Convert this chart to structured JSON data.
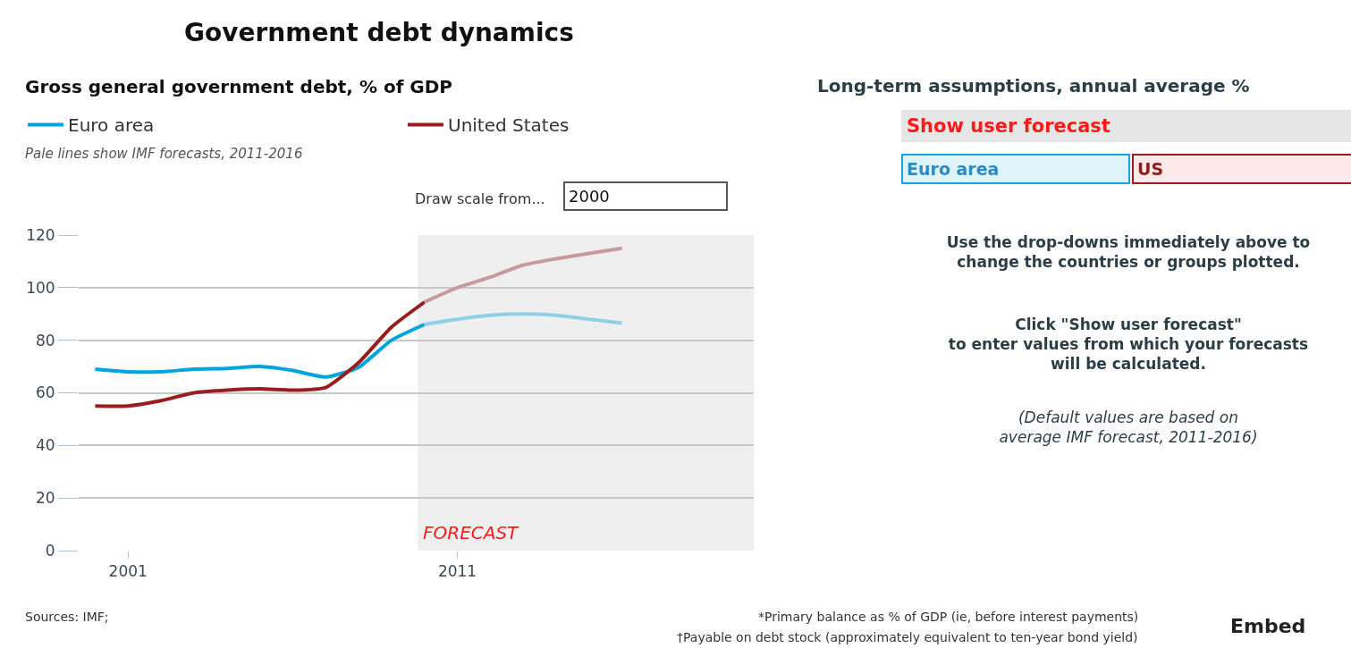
{
  "chart_data": {
    "type": "line",
    "title": "Government debt dynamics",
    "subtitle": "Gross general government debt, % of GDP",
    "x": [
      2000,
      2001,
      2002,
      2003,
      2004,
      2005,
      2006,
      2007,
      2008,
      2009,
      2010
    ],
    "series": [
      {
        "name": "Euro area",
        "color": "#00a5dd",
        "values": [
          69,
          68,
          68,
          69,
          69.3,
          70,
          68.5,
          66,
          69.7,
          80,
          86
        ]
      },
      {
        "name": "United States",
        "color": "#9b1c1f",
        "values": [
          55,
          55,
          57,
          60,
          61,
          61.5,
          61,
          62,
          71.5,
          85,
          94.5
        ]
      },
      {
        "color": "#8fd0e8",
        "x": [
          2010,
          2011,
          2012,
          2013,
          2014,
          2015,
          2016
        ],
        "values": [
          86,
          88,
          89.5,
          90,
          89.5,
          88,
          86.5
        ]
      },
      {
        "color": "#c99a9b",
        "x": [
          2010,
          2011,
          2012,
          2013,
          2014,
          2015,
          2016
        ],
        "values": [
          94.5,
          100,
          104,
          108.6,
          111,
          113,
          115
        ]
      }
    ],
    "xlim": [
      1999.5,
      2020
    ],
    "xticks": [
      2001,
      2011
    ],
    "ylim": [
      0,
      120
    ],
    "yticks": [
      0,
      20,
      40,
      60,
      80,
      100,
      120
    ],
    "grid": "y",
    "legend": "top left",
    "marker": "none",
    "line_style": "solid",
    "bands": [
      {
        "axis": "x",
        "from": 2009.8,
        "to": 2020,
        "label": "FORECAST",
        "color": "#efefef"
      }
    ],
    "annotations": [
      "Pale lines show IMF forecasts, 2011-2016",
      "Draw scale from...",
      "2000",
      "Long-term assumptions, annual average %",
      "Show user forecast",
      "Euro area",
      "US",
      "Use the drop-downs immediately above to change the countries or groups plotted.",
      "Click \"Show user forecast\" to enter values from which your forecasts will be calculated.",
      "(Default values are based on average IMF forecast, 2011-2016)",
      "Sources: IMF;",
      "*Primary balance as % of GDP (ie, before interest payments)",
      "†Payable on debt stock (approximately equivalent to ten-year bond yield)",
      "Embed"
    ]
  }
}
